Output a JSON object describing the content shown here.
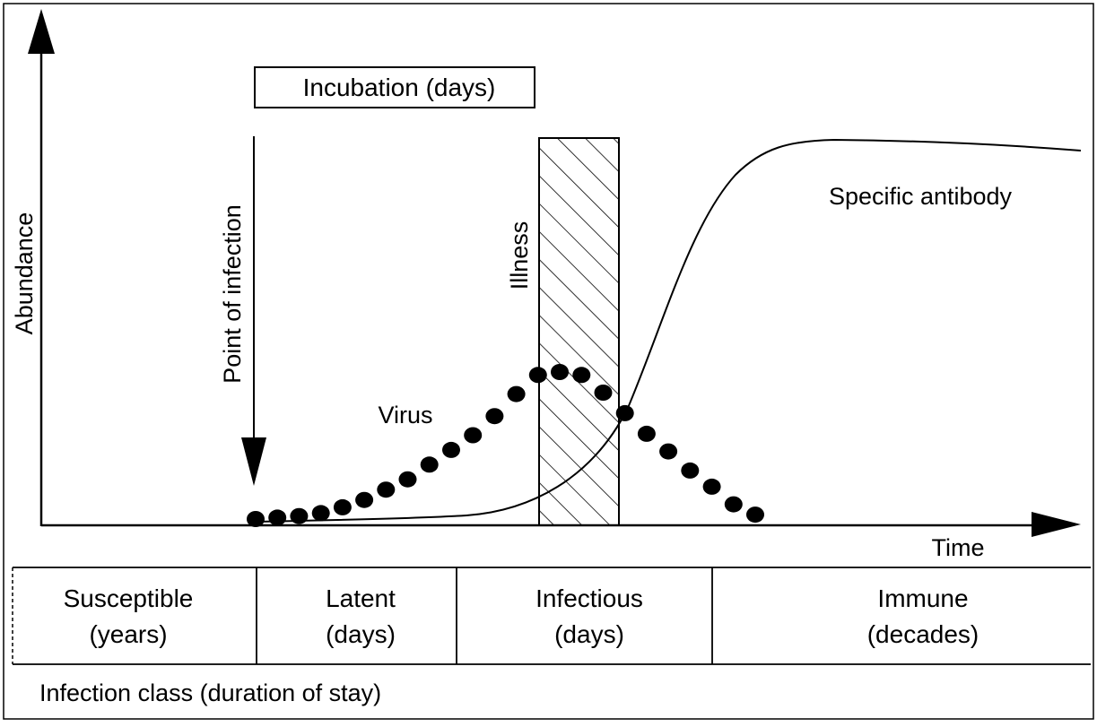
{
  "title": "Infection time course diagram",
  "axes": {
    "y_label": "Abundance",
    "x_label": "Time"
  },
  "labels": {
    "incubation": "Incubation (days)",
    "point_of_infection": "Point of infection",
    "illness": "Illness",
    "virus": "Virus",
    "antibody": "Specific antibody"
  },
  "stages": [
    {
      "name": "Susceptible",
      "duration": "(years)"
    },
    {
      "name": "Latent",
      "duration": "(days)"
    },
    {
      "name": "Infectious",
      "duration": "(days)"
    },
    {
      "name": "Immune",
      "duration": "(decades)"
    }
  ],
  "footer": "Infection class (duration of stay)",
  "virus_curve": {
    "description_values": [
      0.0,
      0.01,
      0.02,
      0.04,
      0.08,
      0.13,
      0.2,
      0.27,
      0.37,
      0.47,
      0.57,
      0.7,
      0.85,
      0.98,
      1.0,
      0.98,
      0.86,
      0.72,
      0.58,
      0.46,
      0.33,
      0.22,
      0.1,
      0.03
    ]
  }
}
